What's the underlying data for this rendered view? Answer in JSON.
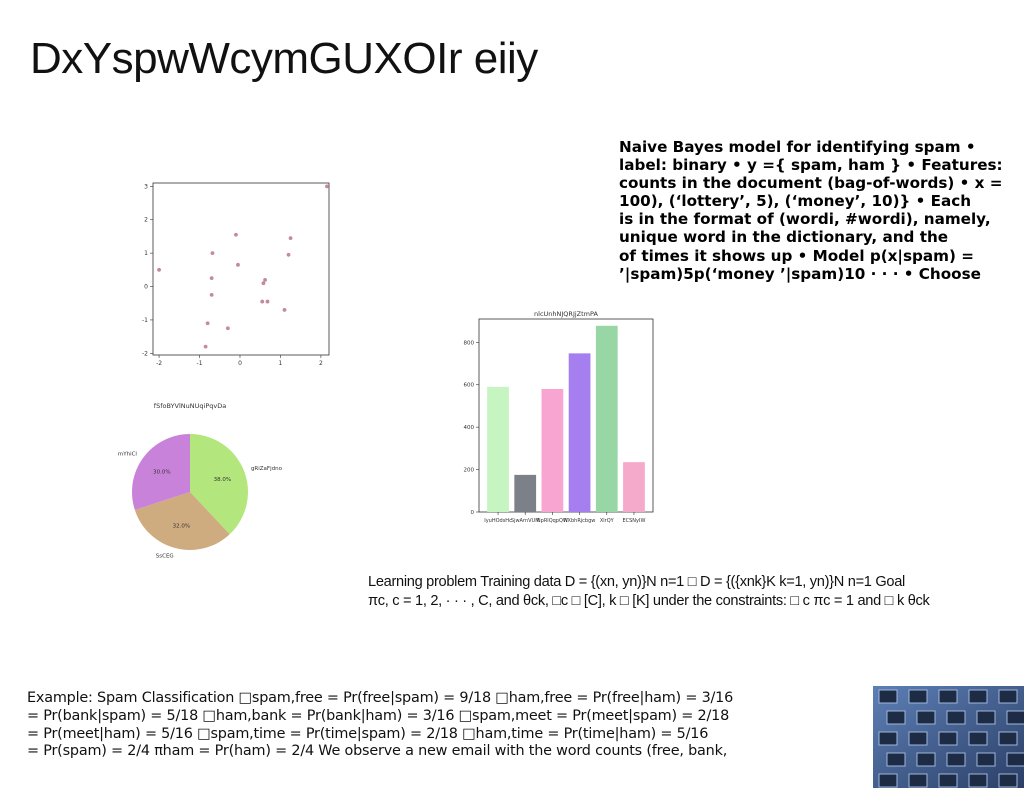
{
  "slide": {
    "title": "DxYspwWcymGUXOIr eiiy",
    "naive_bayes_lines": [
      "Naive Bayes model for identifying spam •",
      "label: binary • y ={ spam, ham } • Features:",
      "counts in the document (bag-of-words) • x =",
      "100), (‘lottery’, 5), (‘money’, 10)} • Each",
      "is in the format of (wordi, #wordi), namely,",
      "unique word in the dictionary, and the",
      "of times it shows up • Model p(x|spam) =",
      "’|spam)5p(‘money ’|spam)10 · · · • Choose"
    ],
    "learning_lines": [
      "Learning problem Training data D = {(xn, yn)}N n=1 □ D = {({xnk}K k=1, yn)}N n=1 Goal",
      "πc, c = 1, 2, · · · , C, and θck, □c □ [C], k □ [K] under the constraints: □ c πc = 1 and □ k θck"
    ],
    "example_lines": [
      "Example: Spam Classification □spam,free = Pr(free|spam) = 9/18 □ham,free = Pr(free|ham) = 3/16",
      "= Pr(bank|spam) = 5/18 □ham,bank = Pr(bank|ham) = 3/16 □spam,meet = Pr(meet|spam) = 2/18",
      "= Pr(meet|ham) = 5/16 □spam,time = Pr(time|spam) = 2/18 □ham,time = Pr(time|ham) = 5/16",
      "= Pr(spam) = 2/4 πham = Pr(ham) = 2/4 We observe a new email with the word counts (free, bank,"
    ],
    "photo_icon": "building-facade-photo"
  },
  "chart_data": [
    {
      "type": "scatter",
      "title": "",
      "xlim": [
        -2.15,
        2.2
      ],
      "ylim": [
        -2.05,
        3.1
      ],
      "xticks": [
        -2,
        -1,
        0,
        1,
        2
      ],
      "yticks": [
        -2,
        -1,
        0,
        1,
        2,
        3
      ],
      "point_color": "#c4899c",
      "points": [
        [
          -2.0,
          0.5
        ],
        [
          -0.85,
          -1.8
        ],
        [
          -0.8,
          -1.1
        ],
        [
          -0.7,
          0.25
        ],
        [
          -0.7,
          -0.25
        ],
        [
          -0.68,
          1.0
        ],
        [
          -0.3,
          -1.25
        ],
        [
          -0.1,
          1.55
        ],
        [
          -0.05,
          0.65
        ],
        [
          0.55,
          -0.45
        ],
        [
          0.58,
          0.1
        ],
        [
          0.62,
          0.2
        ],
        [
          0.68,
          -0.45
        ],
        [
          1.1,
          -0.7
        ],
        [
          1.2,
          0.95
        ],
        [
          1.25,
          1.45
        ],
        [
          2.15,
          3.0
        ]
      ]
    },
    {
      "type": "pie",
      "title": "fSfoBYVlNuNUqiPqvDa",
      "slices": [
        {
          "label": "gRiZaFjdno",
          "value": 38.0,
          "pct_label": "38.0%",
          "color": "#b3e67c"
        },
        {
          "label": "SsCEG",
          "value": 32.0,
          "pct_label": "32.0%",
          "color": "#cfab80"
        },
        {
          "label": "mYhiCl",
          "value": 30.0,
          "pct_label": "30.0%",
          "color": "#c982d9"
        }
      ]
    },
    {
      "type": "bar",
      "title": "nlcUnhNJQRJjZtmPA",
      "ylim": [
        0,
        910
      ],
      "yticks": [
        0,
        200,
        400,
        600,
        800
      ],
      "categories": [
        "IyuHOdsHc",
        "SjwArnVUM",
        "NpRlQqpQW",
        "NXbhRjcbgw",
        "XlrQY",
        "ECSNyIW"
      ],
      "values": [
        590,
        175,
        580,
        748,
        878,
        235
      ],
      "colors": [
        "#c6f5c1",
        "#7c8189",
        "#f9a5d1",
        "#a57ef0",
        "#98d7a5",
        "#f5a9cb"
      ]
    }
  ]
}
